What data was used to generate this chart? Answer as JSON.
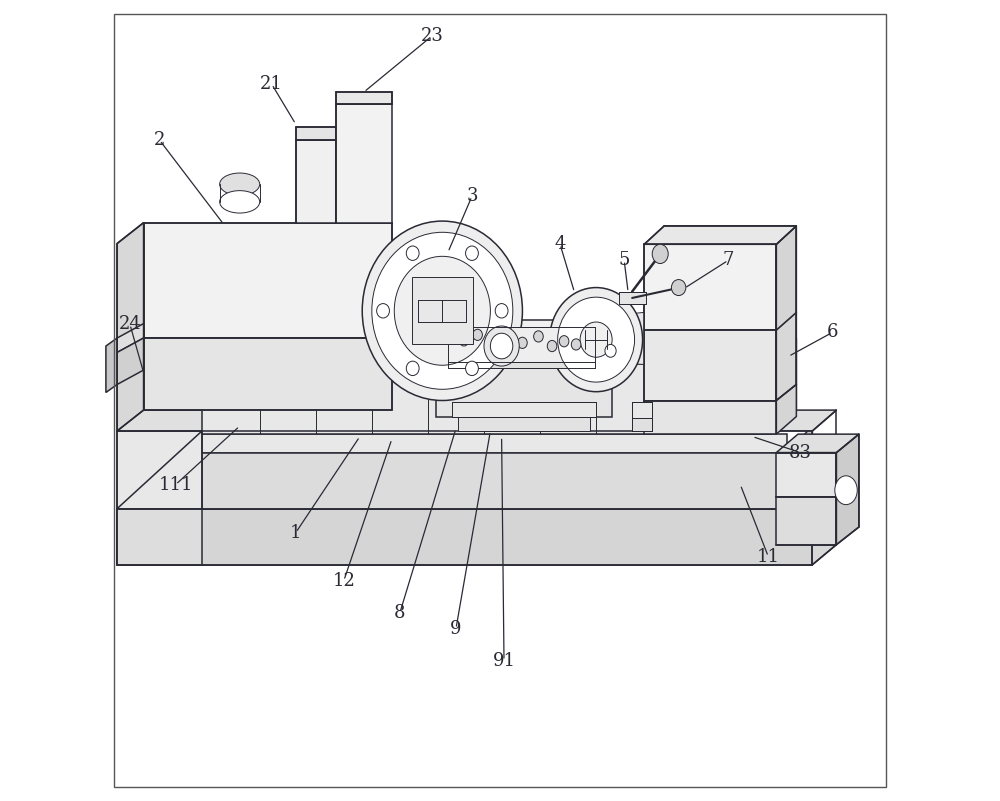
{
  "background_color": "#ffffff",
  "line_color": "#2a2a35",
  "lw_main": 1.1,
  "lw_thin": 0.7,
  "fig_width": 10.0,
  "fig_height": 8.01,
  "labels": {
    "2": {
      "tp": [
        0.075,
        0.825
      ],
      "ae": [
        0.155,
        0.72
      ]
    },
    "21": {
      "tp": [
        0.215,
        0.895
      ],
      "ae": [
        0.245,
        0.845
      ]
    },
    "23": {
      "tp": [
        0.415,
        0.955
      ],
      "ae": [
        0.33,
        0.885
      ]
    },
    "24": {
      "tp": [
        0.038,
        0.595
      ],
      "ae": [
        0.055,
        0.535
      ]
    },
    "3": {
      "tp": [
        0.465,
        0.755
      ],
      "ae": [
        0.435,
        0.685
      ]
    },
    "4": {
      "tp": [
        0.575,
        0.695
      ],
      "ae": [
        0.593,
        0.635
      ]
    },
    "5": {
      "tp": [
        0.655,
        0.675
      ],
      "ae": [
        0.66,
        0.635
      ]
    },
    "7": {
      "tp": [
        0.785,
        0.675
      ],
      "ae": [
        0.73,
        0.64
      ]
    },
    "6": {
      "tp": [
        0.915,
        0.585
      ],
      "ae": [
        0.86,
        0.555
      ]
    },
    "83": {
      "tp": [
        0.875,
        0.435
      ],
      "ae": [
        0.815,
        0.455
      ]
    },
    "11": {
      "tp": [
        0.835,
        0.305
      ],
      "ae": [
        0.8,
        0.395
      ]
    },
    "111": {
      "tp": [
        0.095,
        0.395
      ],
      "ae": [
        0.175,
        0.468
      ]
    },
    "1": {
      "tp": [
        0.245,
        0.335
      ],
      "ae": [
        0.325,
        0.455
      ]
    },
    "12": {
      "tp": [
        0.305,
        0.275
      ],
      "ae": [
        0.365,
        0.452
      ]
    },
    "8": {
      "tp": [
        0.375,
        0.235
      ],
      "ae": [
        0.445,
        0.465
      ]
    },
    "9": {
      "tp": [
        0.445,
        0.215
      ],
      "ae": [
        0.488,
        0.462
      ]
    },
    "91": {
      "tp": [
        0.505,
        0.175
      ],
      "ae": [
        0.502,
        0.455
      ]
    }
  },
  "font_size": 13
}
